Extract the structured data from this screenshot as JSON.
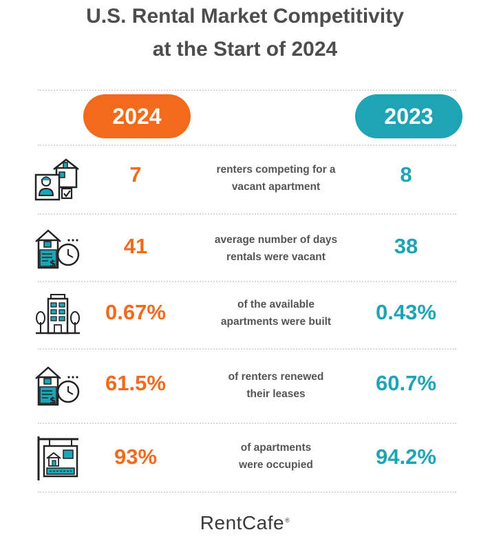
{
  "title": {
    "line1": "U.S. Rental Market Competitivity",
    "line2": "at the Start of 2024"
  },
  "headers": {
    "year_2024": "2024",
    "year_2023": "2023"
  },
  "colors": {
    "accent_2024": "#f26b1d",
    "accent_2023": "#1da5b5",
    "text": "#555555"
  },
  "rows": [
    {
      "icon": "renter-application-icon",
      "value_2024": "7",
      "value_2023": "8",
      "description_line1": "renters competing for a",
      "description_line2": "vacant apartment"
    },
    {
      "icon": "house-clock-money-icon",
      "value_2024": "41",
      "value_2023": "38",
      "description_line1": "average number of days",
      "description_line2": "rentals were vacant"
    },
    {
      "icon": "apartment-building-icon",
      "value_2024": "0.67%",
      "value_2023": "0.43%",
      "description_line1": "of the available",
      "description_line2": "apartments were built"
    },
    {
      "icon": "house-clock-money-icon",
      "value_2024": "61.5%",
      "value_2023": "60.7%",
      "description_line1": "of renters renewed",
      "description_line2": "their leases"
    },
    {
      "icon": "for-rent-sign-icon",
      "value_2024": "93%",
      "value_2023": "94.2%",
      "description_line1": "of apartments",
      "description_line2": "were occupied"
    }
  ],
  "brand": {
    "name": "RentCafe",
    "mark": "®"
  }
}
